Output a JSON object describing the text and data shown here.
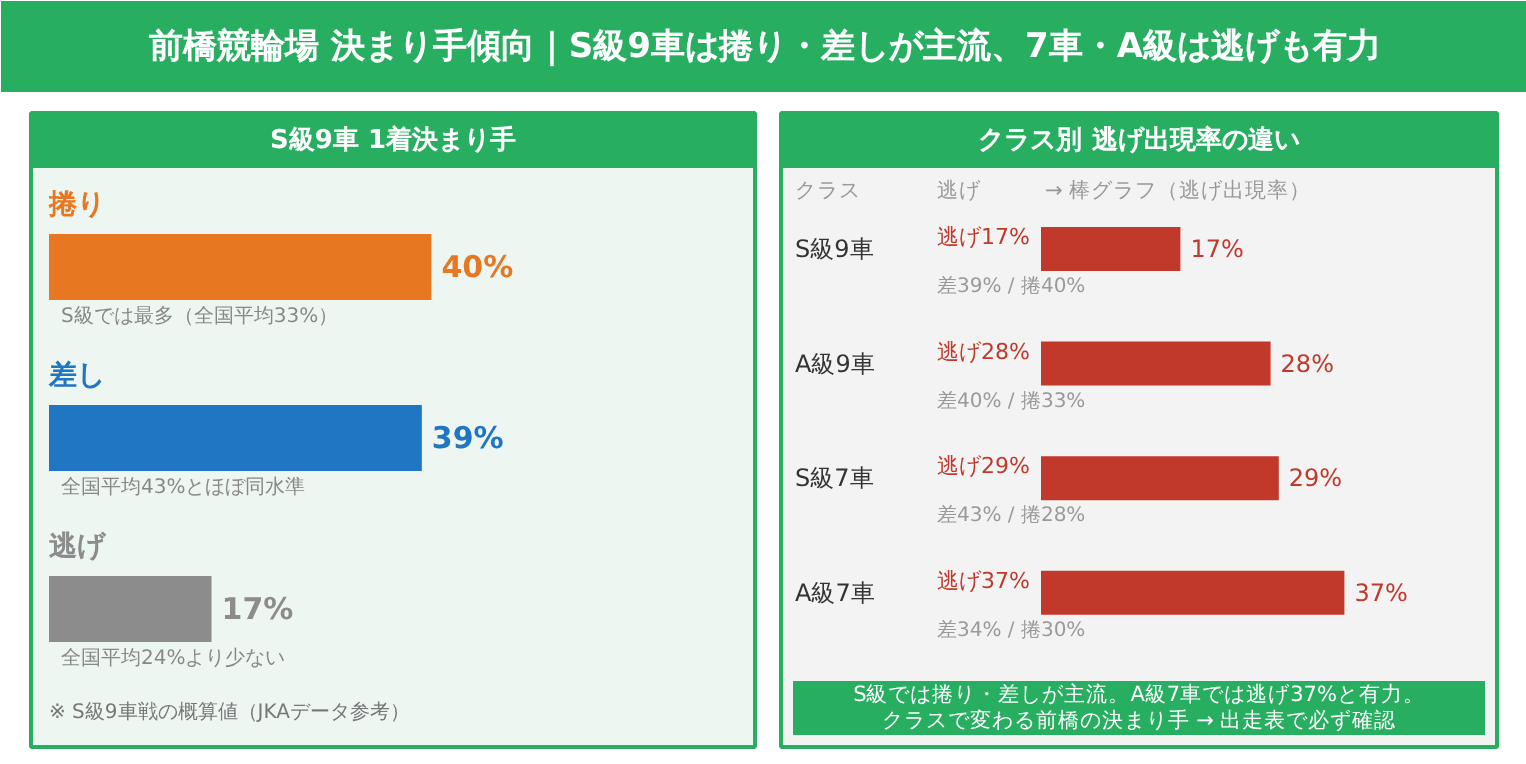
{
  "chart_data": [
    {
      "type": "bar",
      "orientation": "horizontal",
      "title": "前橋競輪場 決まり手傾向｜S級9車は捲り・差しが主流、7車・A級は逃げも有力",
      "subtitle": "S級9車 1着決まり手",
      "categories": [
        "捲り",
        "差し",
        "逃げ"
      ],
      "values": [
        40,
        39,
        17
      ],
      "colors": [
        "#e87722",
        "#2176c4",
        "#8c8c8c"
      ],
      "value_labels": [
        "40%",
        "39%",
        "17%"
      ],
      "annotations": [
        "S級では最多（全国平均33%）",
        "全国平均43%とほぼ同水準",
        "全国平均24%より少ない",
        "※ S級9車戦の概算値（JKAデータ参考）"
      ]
    },
    {
      "type": "bar",
      "orientation": "horizontal",
      "title": "クラス別 逃げ出現率の違い",
      "categories": [
        "S級9車",
        "A級9車",
        "S級7車",
        "A級7車"
      ],
      "values": [
        17,
        28,
        29,
        37
      ],
      "color": "#c0392b",
      "value_labels": [
        "17%",
        "28%",
        "29%",
        "37%"
      ],
      "annotations": [
        "クラス",
        "逃げ",
        "→ 棒グラフ（逃げ出現率）",
        "逃げ17%",
        "差39% / 捲40%",
        "逃げ28%",
        "差40% / 捲33%",
        "逃げ29%",
        "差43% / 捲28%",
        "逃げ37%",
        "差34% / 捲30%",
        "S級では捲り・差しが主流。A級7車では逃げ37%と有力。",
        "クラスで変わる前橋の決まり手 → 出走表で必ず確認"
      ]
    }
  ]
}
